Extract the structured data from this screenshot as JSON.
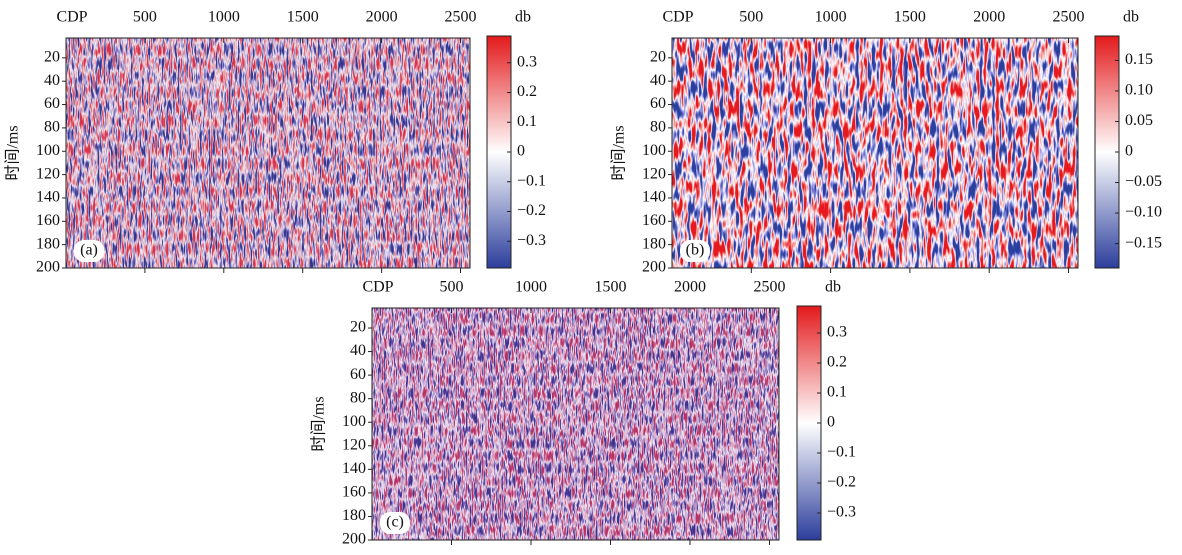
{
  "chart_data": [
    {
      "type": "heatmap",
      "panel_label": "(a)",
      "xlabel": "CDP",
      "ylabel": "时间/ms",
      "xlim": [
        0,
        2560
      ],
      "xticks": [
        500,
        1000,
        1500,
        2000,
        2500
      ],
      "ylim": [
        3,
        200
      ],
      "yticks": [
        20,
        40,
        60,
        80,
        100,
        120,
        140,
        160,
        180,
        200
      ],
      "colorbar_label": "db",
      "clim": [
        -0.39,
        0.39
      ],
      "cticks": [
        0.3,
        0.2,
        0.1,
        0,
        {
          "value": -0.1,
          "label": "−0.1"
        },
        {
          "value": -0.2,
          "label": "−0.2"
        },
        {
          "value": -0.3,
          "label": "−0.3"
        }
      ],
      "colormap": [
        "#2c3e9c",
        "#ffffff",
        "#e31a1c"
      ]
    },
    {
      "type": "heatmap",
      "panel_label": "(b)",
      "xlabel": "CDP",
      "ylabel": "时间/ms",
      "xlim": [
        0,
        2560
      ],
      "xticks": [
        500,
        1000,
        1500,
        2000,
        2500
      ],
      "ylim": [
        3,
        200
      ],
      "yticks": [
        20,
        40,
        60,
        80,
        100,
        120,
        140,
        160,
        180,
        200
      ],
      "colorbar_label": "db",
      "clim": [
        -0.19,
        0.19
      ],
      "cticks": [
        0.15,
        {
          "value": 0.1,
          "label": "0.10"
        },
        0.05,
        0,
        {
          "value": -0.05,
          "label": "−0.05"
        },
        {
          "value": -0.1,
          "label": "−0.10"
        },
        {
          "value": -0.15,
          "label": "−0.15"
        }
      ],
      "colormap": [
        "#2c3e9c",
        "#ffffff",
        "#e31a1c"
      ]
    },
    {
      "type": "heatmap",
      "panel_label": "(c)",
      "xlabel": "CDP",
      "ylabel": "时间/ms",
      "xlim": [
        0,
        2560
      ],
      "xticks": [
        500,
        1000,
        1500,
        2000,
        2500
      ],
      "ylim": [
        3,
        200
      ],
      "yticks": [
        20,
        40,
        60,
        80,
        100,
        120,
        140,
        160,
        180,
        200
      ],
      "colorbar_label": "db",
      "clim": [
        -0.39,
        0.39
      ],
      "cticks": [
        0.3,
        0.2,
        0.1,
        0,
        {
          "value": -0.1,
          "label": "−0.1"
        },
        {
          "value": -0.2,
          "label": "−0.2"
        },
        {
          "value": -0.3,
          "label": "−0.3"
        }
      ],
      "colormap": [
        "#2c3e9c",
        "#ffffff",
        "#e31a1c"
      ]
    }
  ]
}
